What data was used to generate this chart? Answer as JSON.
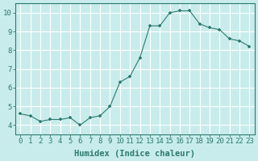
{
  "x": [
    0,
    1,
    2,
    3,
    4,
    5,
    6,
    7,
    8,
    9,
    10,
    11,
    12,
    13,
    14,
    15,
    16,
    17,
    18,
    19,
    20,
    21,
    22,
    23
  ],
  "y": [
    4.6,
    4.5,
    4.2,
    4.3,
    4.3,
    4.4,
    4.0,
    4.4,
    4.5,
    5.0,
    6.3,
    6.6,
    7.6,
    9.3,
    9.3,
    10.0,
    10.1,
    10.1,
    9.4,
    9.2,
    9.1,
    8.6,
    8.5,
    8.2
  ],
  "line_color": "#2d7a6e",
  "marker": "+",
  "bg_color": "#c8ecec",
  "grid_color": "#ffffff",
  "xlabel": "Humidex (Indice chaleur)",
  "xlim": [
    -0.5,
    23.5
  ],
  "ylim": [
    3.5,
    10.5
  ],
  "yticks": [
    4,
    5,
    6,
    7,
    8,
    9,
    10
  ],
  "xticks": [
    0,
    1,
    2,
    3,
    4,
    5,
    6,
    7,
    8,
    9,
    10,
    11,
    12,
    13,
    14,
    15,
    16,
    17,
    18,
    19,
    20,
    21,
    22,
    23
  ],
  "tick_color": "#2d7a6e",
  "label_color": "#2d7a6e",
  "font_size": 6.5,
  "xlabel_fontsize": 7.5
}
